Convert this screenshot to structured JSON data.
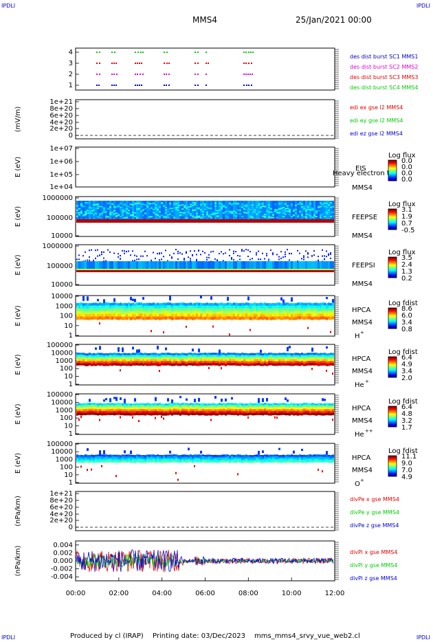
{
  "corners": {
    "tl": "IPDLI",
    "tr": "IPDLI",
    "bl": "IPDLI",
    "br": "IPDLI"
  },
  "header": {
    "spacecraft": "MMS4",
    "date": "25/Jan/2021 00:00"
  },
  "footer": {
    "produced": "Produced by cl (IRAP)",
    "printing": "Printing date: 03/Dec/2023",
    "script": "mms_mms4_srvy_vue_web2.cl"
  },
  "colors": {
    "blue": "#0000cc",
    "magenta": "#dd00dd",
    "red": "#dd0000",
    "green": "#00cc00"
  },
  "chart_data": [
    {
      "type": "scatter",
      "name": "burst",
      "yticks": [
        "4",
        "3",
        "2",
        "1"
      ],
      "legend": [
        {
          "label": "des dist burst SC1 MMS1",
          "color": "#0000cc"
        },
        {
          "label": "des dist burst SC2 MMS2",
          "color": "#dd00dd"
        },
        {
          "label": "des dist burst SC3 MMS3",
          "color": "#dd0000"
        },
        {
          "label": "des dist burst SC4 MMS4",
          "color": "#00cc00"
        }
      ]
    },
    {
      "type": "line",
      "name": "edi",
      "ylabel": "(mV/m)",
      "yticks": [
        "1e+21",
        "8e+20",
        "6e+20",
        "4e+20",
        "2e+20",
        "0"
      ],
      "legend": [
        {
          "label": "edi ex gse l2 MMS4",
          "color": "#dd0000"
        },
        {
          "label": "edi ey gse l2 MMS4",
          "color": "#00cc00"
        },
        {
          "label": "edi ez gse l2 MMS4",
          "color": "#0000cc"
        }
      ]
    },
    {
      "type": "heatmap",
      "name": "eis",
      "ylabel": "E (eV)",
      "yticks": [
        "1e+07",
        "1e+06",
        "1e+05",
        "1e+04"
      ],
      "labels": [
        "EIS",
        "MMS4"
      ],
      "overlay": "Heavy electron to",
      "cbar_title": "Log flux",
      "cbar_ticks": [
        "0.0",
        "0.0",
        "0.0",
        "0.0"
      ]
    },
    {
      "type": "heatmap",
      "name": "feepse",
      "ylabel": "E (eV)",
      "yticks": [
        "1000000",
        "100000",
        "10000"
      ],
      "labels": [
        "FEEPSE",
        "MMS4"
      ],
      "cbar_title": "Log flux",
      "cbar_ticks": [
        "3.1",
        "1.9",
        "0.7",
        "-0.5"
      ]
    },
    {
      "type": "heatmap",
      "name": "feepsi",
      "ylabel": "E (eV)",
      "yticks": [
        "1000000",
        "100000",
        "10000"
      ],
      "labels": [
        "FEEPSI",
        "MMS4"
      ],
      "cbar_title": "Log flux",
      "cbar_ticks": [
        "3.5",
        "2.4",
        "1.3",
        "0.2"
      ]
    },
    {
      "type": "heatmap",
      "name": "hpca-h",
      "ylabel": "E (eV)",
      "yticks": [
        "10000",
        "1000",
        "100",
        "10",
        "1"
      ],
      "labels": [
        "HPCA",
        "MMS4"
      ],
      "species": "H",
      "charge": "+",
      "cbar_title": "Log fdist",
      "cbar_ticks": [
        "8.6",
        "6.0",
        "3.4",
        "0.8"
      ]
    },
    {
      "type": "heatmap",
      "name": "hpca-he",
      "ylabel": "E (eV)",
      "yticks": [
        "100000",
        "10000",
        "1000",
        "100",
        "10",
        "1"
      ],
      "labels": [
        "HPCA",
        "MMS4"
      ],
      "species": "He",
      "charge": "+",
      "cbar_title": "Log fdist",
      "cbar_ticks": [
        "6.4",
        "4.9",
        "3.4",
        "2.0"
      ]
    },
    {
      "type": "heatmap",
      "name": "hpca-he2",
      "ylabel": "E (eV)",
      "yticks": [
        "100000",
        "10000",
        "1000",
        "100",
        "10",
        "1"
      ],
      "labels": [
        "HPCA",
        "MMS4"
      ],
      "species": "He",
      "charge": "++",
      "cbar_title": "Log fdist",
      "cbar_ticks": [
        "6.4",
        "4.8",
        "3.2",
        "1.7"
      ]
    },
    {
      "type": "heatmap",
      "name": "hpca-o",
      "ylabel": "E (eV)",
      "yticks": [
        "100000",
        "10000",
        "1000",
        "100",
        "10",
        "1"
      ],
      "labels": [
        "HPCA",
        "MMS4"
      ],
      "species": "O",
      "charge": "+",
      "cbar_title": "Log fdist",
      "cbar_ticks": [
        "11.1",
        "9.0",
        "7.0",
        "4.9"
      ]
    },
    {
      "type": "line",
      "name": "divpe",
      "ylabel": "(nPa/km)",
      "yticks": [
        "1e+21",
        "8e+20",
        "6e+20",
        "4e+20",
        "2e+20",
        "0"
      ],
      "legend": [
        {
          "label": "divPe x gse MMS4",
          "color": "#dd0000"
        },
        {
          "label": "divPe y gse MMS4",
          "color": "#00cc00"
        },
        {
          "label": "divPe z gse MMS4",
          "color": "#0000cc"
        }
      ]
    },
    {
      "type": "line",
      "name": "divpi",
      "ylabel": "(nPa/km)",
      "yticks": [
        "0.004",
        "0.002",
        "0.000",
        "-0.002",
        "-0.004"
      ],
      "ylim": [
        -0.005,
        0.005
      ],
      "legend": [
        {
          "label": "divPi x gse MMS4",
          "color": "#dd0000"
        },
        {
          "label": "divPi y gse MMS4",
          "color": "#00cc00"
        },
        {
          "label": "divPi z gse MMS4",
          "color": "#0000cc"
        }
      ]
    }
  ],
  "xaxis": {
    "ticks": [
      "00:00",
      "02:00",
      "04:00",
      "06:00",
      "08:00",
      "10:00",
      "12:00"
    ]
  }
}
